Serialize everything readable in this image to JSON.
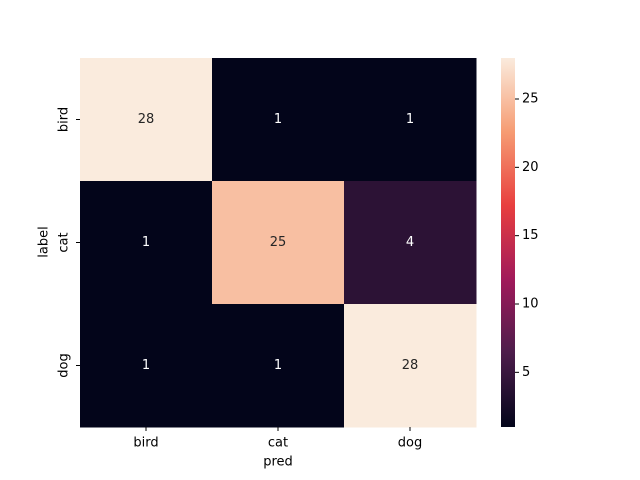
{
  "chart_data": {
    "type": "heatmap",
    "x_categories": [
      "bird",
      "cat",
      "dog"
    ],
    "y_categories": [
      "bird",
      "cat",
      "dog"
    ],
    "values": [
      [
        28,
        1,
        1
      ],
      [
        1,
        25,
        4
      ],
      [
        1,
        1,
        28
      ]
    ],
    "xlabel": "pred",
    "ylabel": "label",
    "colormap": "rocket",
    "clim": [
      1,
      28
    ],
    "cticks": [
      5,
      10,
      15,
      20,
      25
    ]
  }
}
